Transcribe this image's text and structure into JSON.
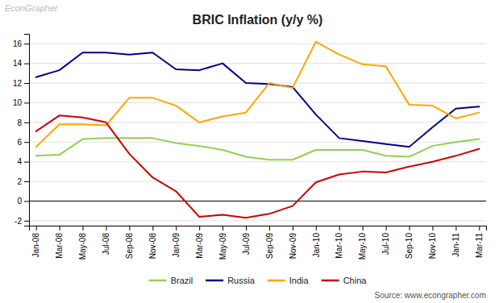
{
  "chart_data": {
    "type": "line",
    "title": "BRIC Inflation (y/y %)",
    "annotations": [
      "EconGrapher",
      "Source: www.econgrapher.com"
    ],
    "categories": [
      "Jan-08",
      "Mar-08",
      "May-08",
      "Jul-08",
      "Sep-08",
      "Nov-08",
      "Jan-09",
      "Mar-09",
      "May-09",
      "Jul-09",
      "Sep-09",
      "Nov-09",
      "Jan-10",
      "Mar-10",
      "May-10",
      "Jul-10",
      "Sep-10",
      "Nov-10",
      "Jan-11",
      "Mar-11"
    ],
    "series": [
      {
        "name": "Brazil",
        "color": "#92d050",
        "values": [
          4.6,
          4.7,
          6.3,
          6.4,
          6.4,
          6.4,
          5.9,
          5.6,
          5.2,
          4.5,
          4.2,
          4.2,
          5.2,
          5.2,
          5.2,
          4.6,
          4.5,
          5.6,
          6.0,
          6.3
        ]
      },
      {
        "name": "Russia",
        "color": "#00008b",
        "values": [
          12.6,
          13.3,
          15.1,
          15.1,
          14.9,
          15.1,
          13.4,
          13.3,
          14.0,
          12.0,
          11.9,
          11.6,
          8.8,
          6.4,
          6.1,
          5.8,
          5.5,
          7.5,
          9.4,
          9.6
        ]
      },
      {
        "name": "India",
        "color": "#ffa500",
        "values": [
          5.5,
          7.8,
          7.8,
          7.7,
          10.5,
          10.5,
          9.7,
          8.0,
          8.6,
          9.0,
          12.0,
          11.5,
          16.2,
          14.9,
          13.9,
          13.7,
          9.8,
          9.7,
          8.4,
          9.0
        ]
      },
      {
        "name": "China",
        "color": "#cc0000",
        "values": [
          7.1,
          8.7,
          8.5,
          8.0,
          4.8,
          2.4,
          1.0,
          -1.6,
          -1.4,
          -1.7,
          -1.3,
          -0.5,
          1.9,
          2.7,
          3.0,
          2.9,
          3.5,
          4.0,
          4.6,
          5.3
        ]
      }
    ],
    "ylim": [
      -2.5,
      17
    ],
    "yticks": [
      -2,
      0,
      2,
      4,
      6,
      8,
      10,
      12,
      14,
      16
    ],
    "grid": true,
    "legend": "bottom"
  }
}
